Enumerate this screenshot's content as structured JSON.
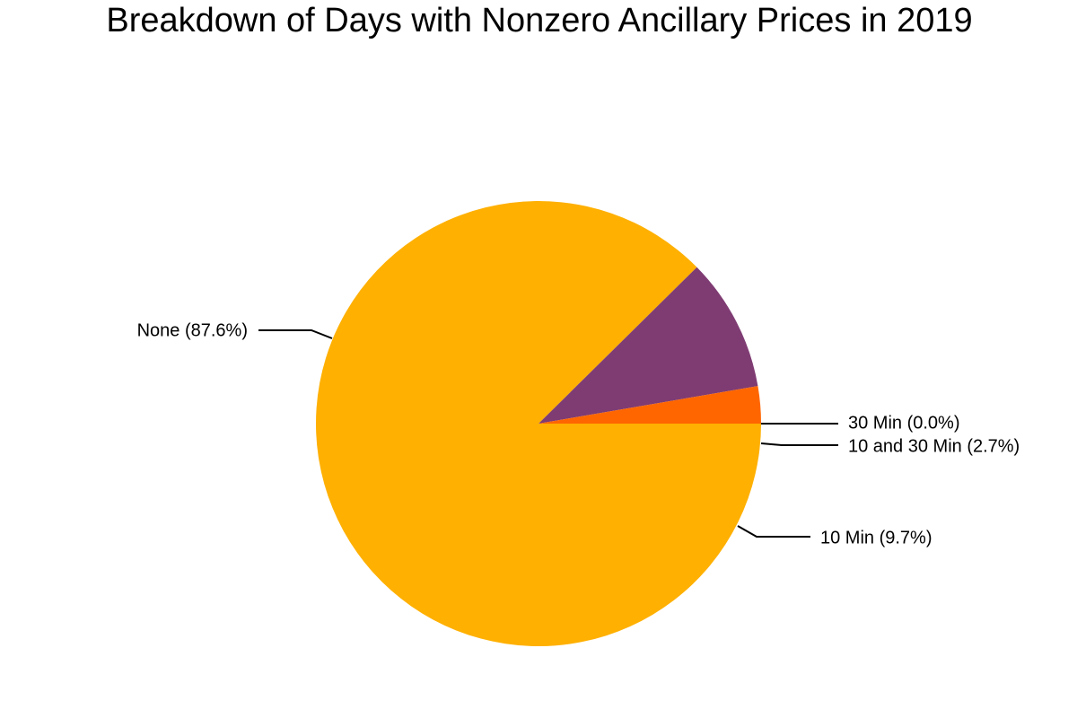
{
  "chart_data": {
    "type": "pie",
    "title": "Breakdown of Days with Nonzero Ancillary Prices in 2019",
    "slices": [
      {
        "label": "None",
        "value": 87.6,
        "display": "None (87.6%)",
        "color": "#FFB000"
      },
      {
        "label": "10 Min",
        "value": 9.7,
        "display": "10 Min (9.7%)",
        "color": "#7F3C73"
      },
      {
        "label": "10 and 30 Min",
        "value": 2.7,
        "display": "10 and 30 Min (2.7%)",
        "color": "#FF6600"
      },
      {
        "label": "30 Min",
        "value": 0.0,
        "display": "30 Min (0.0%)",
        "color": "#FFB000"
      }
    ],
    "start_angle": "3 o'clock",
    "direction": "clockwise",
    "legend": "none",
    "grid": false
  }
}
